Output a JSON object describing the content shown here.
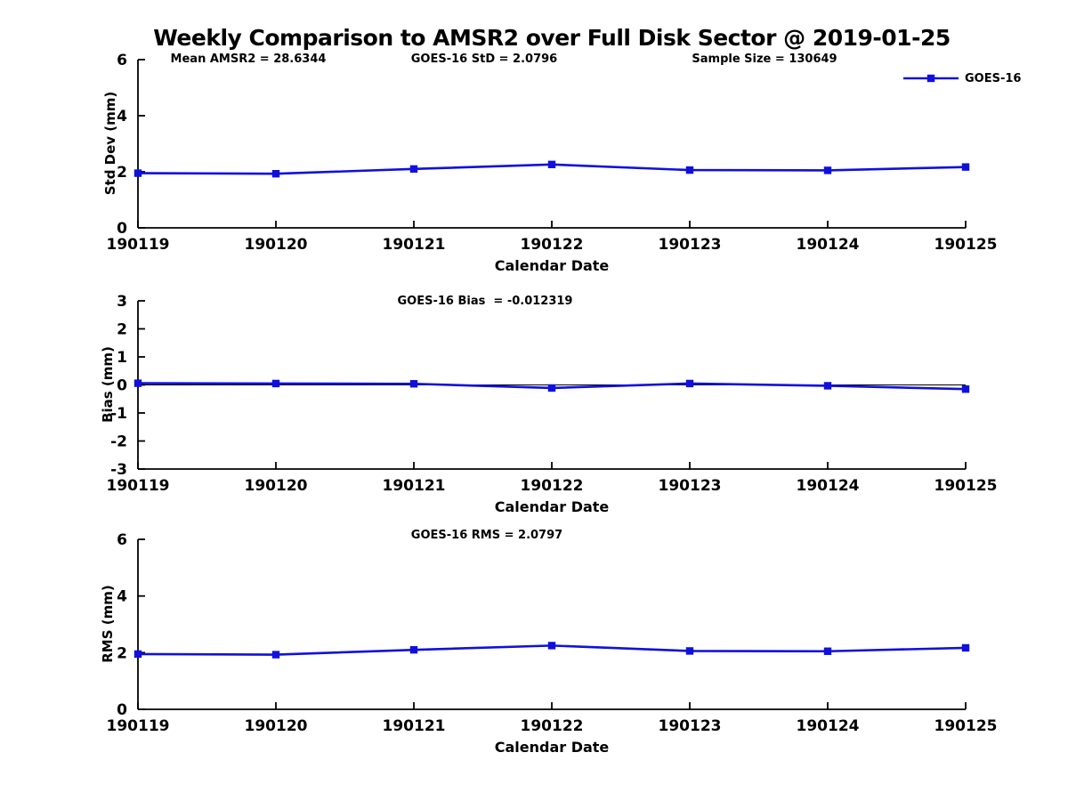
{
  "title": "Weekly Comparison to AMSR2 over Full Disk Sector @ 2019-01-25",
  "legend": {
    "label": "GOES-16",
    "color": "#1010dd"
  },
  "colors": {
    "line": "#1010dd",
    "axis": "#000000",
    "text": "#000000"
  },
  "chart_data": [
    {
      "type": "line",
      "subplot": "std-dev",
      "annotations": [
        "Mean AMSR2 = 28.6344",
        "GOES-16 StD = 2.0796",
        "Sample Size = 130649"
      ],
      "categories": [
        "190119",
        "190120",
        "190121",
        "190122",
        "190123",
        "190124",
        "190125"
      ],
      "series": [
        {
          "name": "GOES-16",
          "values": [
            1.95,
            1.93,
            2.1,
            2.26,
            2.06,
            2.05,
            2.17
          ]
        }
      ],
      "xlabel": "Calendar Date",
      "ylabel": "Std Dev (mm)",
      "ylim": [
        0,
        6
      ],
      "yticks": [
        0,
        2,
        4,
        6
      ],
      "grid": false,
      "zero_line": false,
      "legend_position": "top-right"
    },
    {
      "type": "line",
      "subplot": "bias",
      "annotations": [
        "GOES-16 Bias  = -0.012319"
      ],
      "categories": [
        "190119",
        "190120",
        "190121",
        "190122",
        "190123",
        "190124",
        "190125"
      ],
      "series": [
        {
          "name": "GOES-16",
          "values": [
            0.06,
            0.05,
            0.04,
            -0.11,
            0.05,
            -0.03,
            -0.15
          ]
        }
      ],
      "xlabel": "Calendar Date",
      "ylabel": "Bias (mm)",
      "ylim": [
        -3,
        3
      ],
      "yticks": [
        -3,
        -2,
        -1,
        0,
        1,
        2,
        3
      ],
      "grid": false,
      "zero_line": true,
      "legend_position": "none"
    },
    {
      "type": "line",
      "subplot": "rms",
      "annotations": [
        "GOES-16 RMS = 2.0797"
      ],
      "categories": [
        "190119",
        "190120",
        "190121",
        "190122",
        "190123",
        "190124",
        "190125"
      ],
      "series": [
        {
          "name": "GOES-16",
          "values": [
            1.95,
            1.93,
            2.1,
            2.25,
            2.06,
            2.05,
            2.17
          ]
        }
      ],
      "xlabel": "Calendar Date",
      "ylabel": "RMS (mm)",
      "ylim": [
        0,
        6
      ],
      "yticks": [
        0,
        2,
        4,
        6
      ],
      "grid": false,
      "zero_line": false,
      "legend_position": "none"
    }
  ]
}
